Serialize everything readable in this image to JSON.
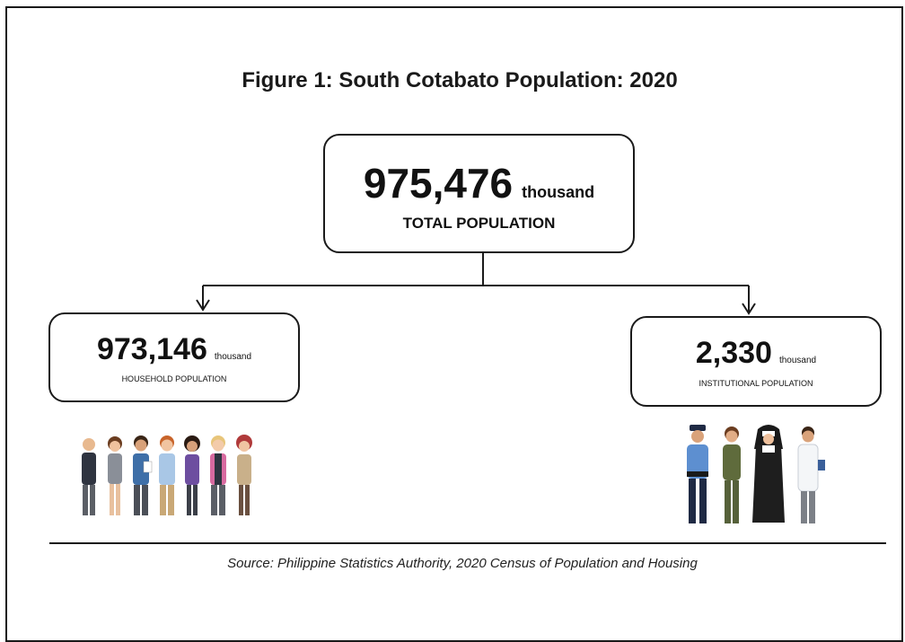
{
  "figure": {
    "title": "Figure 1: South Cotabato Population: 2020"
  },
  "total": {
    "value": "975,476",
    "unit": "thousand",
    "label": "TOTAL POPULATION"
  },
  "household": {
    "value": "973,146",
    "unit": "thousand",
    "label": "HOUSEHOLD POPULATION"
  },
  "institutional": {
    "value": "2,330",
    "unit": "thousand",
    "label": "INSTITUTIONAL POPULATION"
  },
  "source": "Source: Philippine Statistics Authority, 2020 Census of Population and Housing",
  "illustrations": {
    "household_group": "people-group-icon",
    "institutional_group": "uniformed-workers-icon"
  },
  "colors": {
    "line": "#1a1a1a",
    "text": "#111111"
  }
}
